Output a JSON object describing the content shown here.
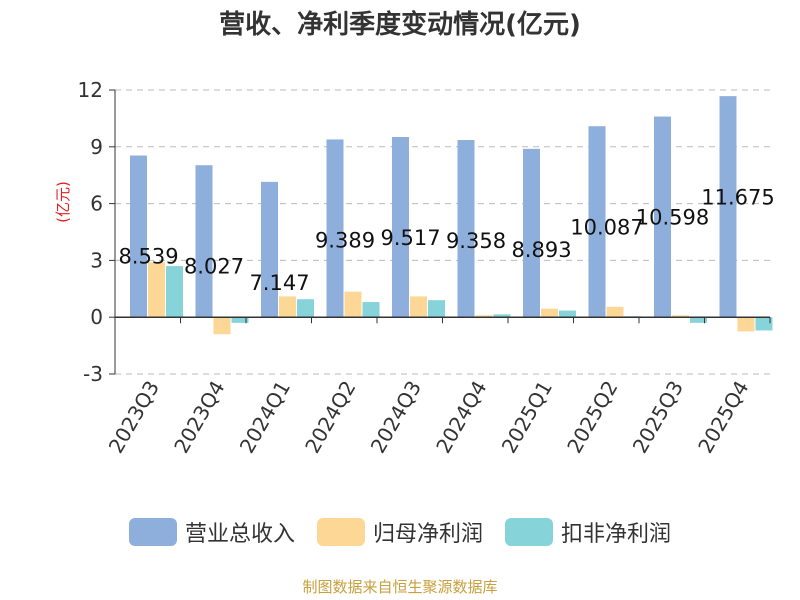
{
  "title": "营收、净利季度变动情况(亿元)",
  "source": "制图数据来自恒生聚源数据库",
  "colors": {
    "revenue": "#8EAEDB",
    "net_profit": "#FDD796",
    "deducted_profit": "#86D4D9",
    "unit_label": "#e02020",
    "axis": "#333333",
    "grid": "#bbbbbb"
  },
  "chart_data": {
    "type": "bar",
    "title": "营收、净利季度变动情况(亿元)",
    "ylabel": "(亿元)",
    "xlabel": "",
    "ylim": [
      -3,
      12
    ],
    "yticks": [
      -3,
      0,
      3,
      6,
      9,
      12
    ],
    "grid": true,
    "legend_position": "bottom",
    "categories": [
      "2023Q3",
      "2023Q4",
      "2024Q1",
      "2024Q2",
      "2024Q3",
      "2024Q4",
      "2025Q1",
      "2025Q2",
      "2025Q3",
      "2025Q4"
    ],
    "series": [
      {
        "name": "营业总收入",
        "color_key": "revenue",
        "values": [
          8.539,
          8.027,
          7.147,
          9.389,
          9.517,
          9.358,
          8.893,
          10.087,
          10.598,
          11.675
        ],
        "labels": [
          "8.539",
          "8.027",
          "7.147",
          "9.389",
          "9.517",
          "9.358",
          "8.893",
          "10.087",
          "10.598",
          "11.675"
        ]
      },
      {
        "name": "归母净利润",
        "color_key": "net_profit",
        "values": [
          2.9,
          -0.9,
          1.1,
          1.35,
          1.1,
          0.1,
          0.45,
          0.55,
          0.1,
          -0.75
        ]
      },
      {
        "name": "扣非净利润",
        "color_key": "deducted_profit",
        "values": [
          2.7,
          -0.3,
          0.95,
          0.8,
          0.9,
          0.15,
          0.35,
          0.05,
          -0.3,
          -0.7
        ]
      }
    ]
  }
}
